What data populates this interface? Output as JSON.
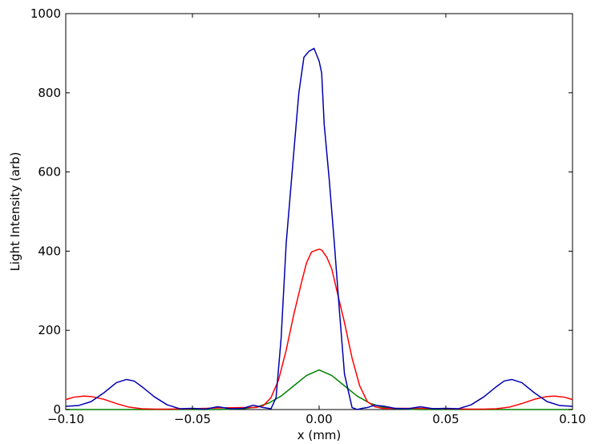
{
  "chart_data": {
    "type": "line",
    "title": "",
    "xlabel": "x (mm)",
    "ylabel": "Light Intensity (arb)",
    "xlim": [
      -0.1,
      0.1
    ],
    "ylim": [
      0,
      1000
    ],
    "grid": false,
    "xticks": [
      -0.1,
      -0.05,
      0.0,
      0.05,
      0.1
    ],
    "xtick_labels": [
      "−0.10",
      "−0.05",
      "0.00",
      "0.05",
      "0.10"
    ],
    "yticks": [
      0,
      200,
      400,
      600,
      800,
      1000
    ],
    "ytick_labels": [
      "0",
      "200",
      "400",
      "600",
      "800",
      "1000"
    ],
    "series": [
      {
        "color": "#008000",
        "x": [
          -0.1,
          -0.04,
          -0.03,
          -0.025,
          -0.02,
          -0.015,
          -0.01,
          -0.005,
          0.0,
          0.005,
          0.01,
          0.015,
          0.02,
          0.025,
          0.03,
          0.04,
          0.1
        ],
        "y": [
          0,
          0,
          2,
          6,
          16,
          34,
          60,
          86,
          100,
          86,
          60,
          34,
          16,
          6,
          2,
          0,
          0
        ]
      },
      {
        "color": "#ff0000",
        "x": [
          -0.1,
          -0.097,
          -0.093,
          -0.09,
          -0.085,
          -0.08,
          -0.075,
          -0.07,
          -0.065,
          -0.06,
          -0.05,
          -0.04,
          -0.03,
          -0.025,
          -0.022,
          -0.019,
          -0.016,
          -0.013,
          -0.01,
          -0.007,
          -0.005,
          -0.003,
          -0.001,
          0.0,
          0.001,
          0.003,
          0.005,
          0.007,
          0.01,
          0.013,
          0.016,
          0.019,
          0.022,
          0.025,
          0.03,
          0.04,
          0.05,
          0.06,
          0.065,
          0.07,
          0.075,
          0.08,
          0.085,
          0.09,
          0.093,
          0.097,
          0.1
        ],
        "y": [
          25,
          31,
          34,
          33,
          26,
          15,
          6,
          2,
          1,
          1,
          2,
          4,
          5,
          5,
          10,
          30,
          75,
          150,
          240,
          320,
          370,
          398,
          403,
          405,
          403,
          385,
          355,
          300,
          220,
          130,
          60,
          20,
          7,
          3,
          3,
          3,
          2,
          1,
          1,
          2,
          6,
          15,
          26,
          33,
          34,
          31,
          25
        ]
      },
      {
        "color": "#0000b0",
        "x": [
          -0.1,
          -0.095,
          -0.09,
          -0.085,
          -0.08,
          -0.076,
          -0.073,
          -0.07,
          -0.065,
          -0.06,
          -0.055,
          -0.05,
          -0.045,
          -0.04,
          -0.035,
          -0.03,
          -0.026,
          -0.022,
          -0.019,
          -0.017,
          -0.015,
          -0.013,
          -0.01,
          -0.008,
          -0.006,
          -0.004,
          -0.002,
          0.0,
          0.001,
          0.002,
          0.004,
          0.006,
          0.008,
          0.01,
          0.013,
          0.015,
          0.017,
          0.019,
          0.022,
          0.026,
          0.03,
          0.035,
          0.04,
          0.045,
          0.05,
          0.055,
          0.06,
          0.065,
          0.07,
          0.073,
          0.076,
          0.08,
          0.085,
          0.09,
          0.095,
          0.1
        ],
        "y": [
          8,
          10,
          20,
          42,
          68,
          76,
          72,
          58,
          32,
          12,
          2,
          3,
          1,
          7,
          2,
          3,
          11,
          5,
          2,
          30,
          180,
          420,
          650,
          800,
          890,
          905,
          912,
          880,
          850,
          720,
          580,
          420,
          250,
          90,
          5,
          0,
          3,
          5,
          11,
          8,
          3,
          2,
          7,
          2,
          3,
          2,
          12,
          32,
          58,
          72,
          76,
          68,
          42,
          20,
          10,
          8
        ]
      }
    ]
  }
}
